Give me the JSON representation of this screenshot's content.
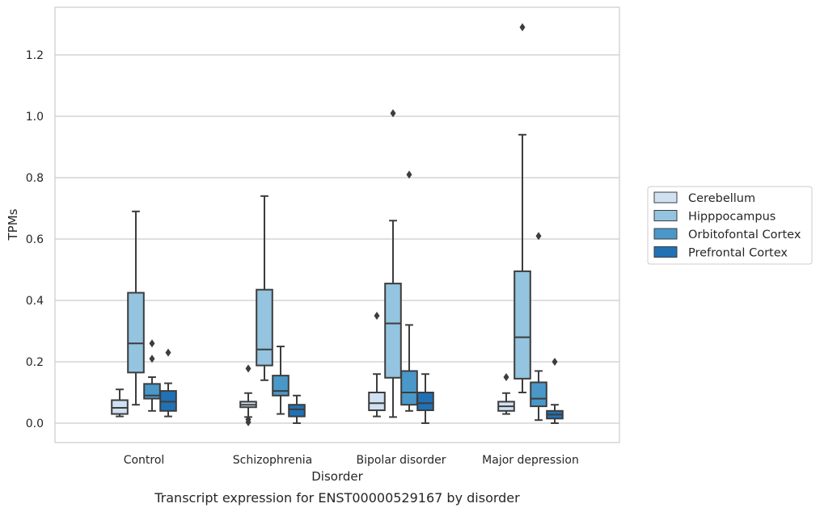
{
  "chart_data": {
    "type": "box",
    "xlabel": "Disorder",
    "ylabel": "TPMs",
    "caption": "Transcript expression for ENST00000529167 by disorder",
    "categories": [
      "Control",
      "Schizophrenia",
      "Bipolar disorder",
      "Major depression"
    ],
    "ylim": [
      -0.062,
      1.36
    ],
    "yticks": [
      0.0,
      0.2,
      0.4,
      0.6,
      0.8,
      1.0,
      1.2
    ],
    "ytick_labels": [
      "0.0",
      "0.2",
      "0.4",
      "0.6",
      "0.8",
      "1.0",
      "1.2"
    ],
    "grid": "horizontal",
    "legend_position": "right",
    "series": [
      {
        "name": "Cerebellum",
        "color": "#d0e1f2",
        "boxes": [
          {
            "whislo": 0.022,
            "q1": 0.03,
            "med": 0.05,
            "q3": 0.075,
            "whishi": 0.11,
            "fliers": []
          },
          {
            "whislo": 0.02,
            "q1": 0.052,
            "med": 0.06,
            "q3": 0.07,
            "whishi": 0.098,
            "fliers": [
              0.178,
              0.012,
              0.003
            ]
          },
          {
            "whislo": 0.022,
            "q1": 0.042,
            "med": 0.065,
            "q3": 0.1,
            "whishi": 0.16,
            "fliers": [
              0.35
            ]
          },
          {
            "whislo": 0.03,
            "q1": 0.04,
            "med": 0.055,
            "q3": 0.07,
            "whishi": 0.098,
            "fliers": [
              0.15
            ]
          }
        ]
      },
      {
        "name": "Hipppocampus",
        "color": "#94c4df",
        "boxes": [
          {
            "whislo": 0.06,
            "q1": 0.165,
            "med": 0.26,
            "q3": 0.425,
            "whishi": 0.69,
            "fliers": []
          },
          {
            "whislo": 0.14,
            "q1": 0.188,
            "med": 0.24,
            "q3": 0.435,
            "whishi": 0.74,
            "fliers": []
          },
          {
            "whislo": 0.02,
            "q1": 0.148,
            "med": 0.325,
            "q3": 0.455,
            "whishi": 0.66,
            "fliers": [
              1.01
            ]
          },
          {
            "whislo": 0.1,
            "q1": 0.145,
            "med": 0.28,
            "q3": 0.495,
            "whishi": 0.94,
            "fliers": [
              1.29
            ]
          }
        ]
      },
      {
        "name": "Orbitofontal Cortex",
        "color": "#4a98c9",
        "boxes": [
          {
            "whislo": 0.04,
            "q1": 0.08,
            "med": 0.09,
            "q3": 0.128,
            "whishi": 0.15,
            "fliers": [
              0.26,
              0.21
            ]
          },
          {
            "whislo": 0.03,
            "q1": 0.09,
            "med": 0.105,
            "q3": 0.155,
            "whishi": 0.25,
            "fliers": []
          },
          {
            "whislo": 0.04,
            "q1": 0.06,
            "med": 0.1,
            "q3": 0.17,
            "whishi": 0.32,
            "fliers": [
              0.81
            ]
          },
          {
            "whislo": 0.01,
            "q1": 0.055,
            "med": 0.08,
            "q3": 0.133,
            "whishi": 0.17,
            "fliers": [
              0.61
            ]
          }
        ]
      },
      {
        "name": "Prefrontal Cortex",
        "color": "#2171b5",
        "boxes": [
          {
            "whislo": 0.022,
            "q1": 0.04,
            "med": 0.07,
            "q3": 0.105,
            "whishi": 0.13,
            "fliers": [
              0.23
            ]
          },
          {
            "whislo": 0.0,
            "q1": 0.022,
            "med": 0.045,
            "q3": 0.06,
            "whishi": 0.09,
            "fliers": []
          },
          {
            "whislo": 0.0,
            "q1": 0.042,
            "med": 0.065,
            "q3": 0.1,
            "whishi": 0.16,
            "fliers": []
          },
          {
            "whislo": 0.0,
            "q1": 0.015,
            "med": 0.028,
            "q3": 0.04,
            "whishi": 0.06,
            "fliers": [
              0.2
            ]
          }
        ]
      }
    ]
  }
}
